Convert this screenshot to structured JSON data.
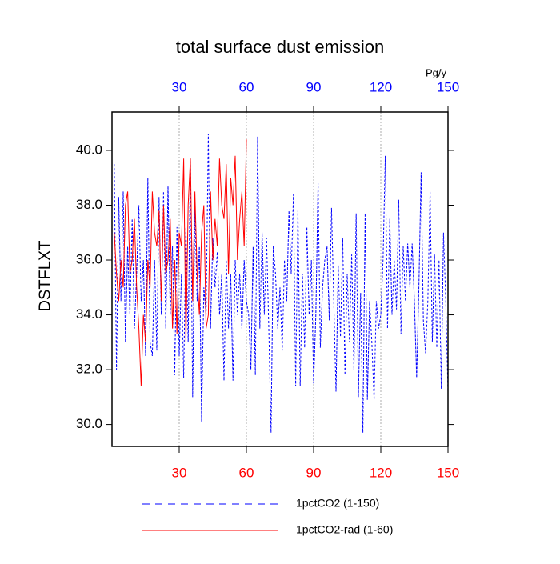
{
  "chart_data": {
    "type": "line",
    "title": "total surface dust emission",
    "ylabel": "DSTFLXT",
    "top_axis_label": "Pg/y",
    "xlim": [
      0,
      150
    ],
    "xticks": [
      30,
      60,
      90,
      120,
      150
    ],
    "bottom_tick_color": "red",
    "top_tick_color": "blue",
    "ylim": [
      29.2,
      41.4
    ],
    "yticks": [
      {
        "value": 30,
        "label": "30.0"
      },
      {
        "value": 32,
        "label": "32.0"
      },
      {
        "value": 34,
        "label": "34.0"
      },
      {
        "value": 36,
        "label": "36.0"
      },
      {
        "value": 38,
        "label": "38.0"
      },
      {
        "value": 40,
        "label": "40.0"
      }
    ],
    "grid": true,
    "x": [
      1,
      2,
      3,
      4,
      5,
      6,
      7,
      8,
      9,
      10,
      11,
      12,
      13,
      14,
      15,
      16,
      17,
      18,
      19,
      20,
      21,
      22,
      23,
      24,
      25,
      26,
      27,
      28,
      29,
      30,
      31,
      32,
      33,
      34,
      35,
      36,
      37,
      38,
      39,
      40,
      41,
      42,
      43,
      44,
      45,
      46,
      47,
      48,
      49,
      50,
      51,
      52,
      53,
      54,
      55,
      56,
      57,
      58,
      59,
      60,
      61,
      62,
      63,
      64,
      65,
      66,
      67,
      68,
      69,
      70,
      71,
      72,
      73,
      74,
      75,
      76,
      77,
      78,
      79,
      80,
      81,
      82,
      83,
      84,
      85,
      86,
      87,
      88,
      89,
      90,
      91,
      92,
      93,
      94,
      95,
      96,
      97,
      98,
      99,
      100,
      101,
      102,
      103,
      104,
      105,
      106,
      107,
      108,
      109,
      110,
      111,
      112,
      113,
      114,
      115,
      116,
      117,
      118,
      119,
      120,
      121,
      122,
      123,
      124,
      125,
      126,
      127,
      128,
      129,
      130,
      131,
      132,
      133,
      134,
      135,
      136,
      137,
      138,
      139,
      140,
      141,
      142,
      143,
      144,
      145,
      146,
      147,
      148,
      149,
      150
    ],
    "series": [
      {
        "name": "1pctCO2 (1-150)",
        "color": "blue",
        "dashed": true,
        "values": [
          39.5,
          32.0,
          38.3,
          34.5,
          38.5,
          33.0,
          36.5,
          34.0,
          37.5,
          33.5,
          35.5,
          38.0,
          34.5,
          36.0,
          32.5,
          39.0,
          33.0,
          32.5,
          36.0,
          32.7,
          38.3,
          34.0,
          38.5,
          33.5,
          38.7,
          34.0,
          36.5,
          31.8,
          37.2,
          32.5,
          35.5,
          31.7,
          37.2,
          33.0,
          39.7,
          31.0,
          38.0,
          34.5,
          36.5,
          30.1,
          35.0,
          34.0,
          40.6,
          33.5,
          36.8,
          35.0,
          36.3,
          34.0,
          35.5,
          31.6,
          36.0,
          33.5,
          35.5,
          31.6,
          36.0,
          34.0,
          35.5,
          33.5,
          36.0,
          34.5,
          34.0,
          32.0,
          36.5,
          31.8,
          40.5,
          33.5,
          37.0,
          34.0,
          36.8,
          33.5,
          29.7,
          36.5,
          35.5,
          33.5,
          35.0,
          32.7,
          36.0,
          34.5,
          37.8,
          35.5,
          38.4,
          31.4,
          37.8,
          31.4,
          35.5,
          32.8,
          37.2,
          34.0,
          36.0,
          31.5,
          34.0,
          38.8,
          32.8,
          35.0,
          36.0,
          36.5,
          33.8,
          37.9,
          34.5,
          31.2,
          35.8,
          33.2,
          36.8,
          31.8,
          35.5,
          33.0,
          36.2,
          32.0,
          37.7,
          31.0,
          34.8,
          29.7,
          37.7,
          30.9,
          34.5,
          33.0,
          30.9,
          34.5,
          33.5,
          34.0,
          36.0,
          39.8,
          33.5,
          37.5,
          34.0,
          36.0,
          34.2,
          38.2,
          33.3,
          36.5,
          34.5,
          36.6,
          35.0,
          36.6,
          34.5,
          31.7,
          35.0,
          39.2,
          33.8,
          32.6,
          34.5,
          38.5,
          33.0,
          36.2,
          32.8,
          36.0,
          31.3,
          37.0,
          34.5,
          31.2
        ]
      },
      {
        "name": "1pctCO2-rad (1-60)",
        "color": "red",
        "dashed": false,
        "values": [
          37.0,
          35.5,
          34.5,
          36.0,
          35.0,
          38.0,
          38.5,
          35.5,
          36.0,
          37.5,
          35.0,
          33.5,
          31.4,
          34.0,
          33.0,
          36.0,
          35.0,
          38.5,
          37.0,
          36.5,
          37.8,
          34.5,
          38.0,
          35.5,
          36.0,
          37.5,
          33.5,
          36.0,
          33.3,
          37.0,
          36.5,
          39.7,
          33.0,
          38.0,
          39.7,
          34.5,
          38.5,
          35.5,
          34.0,
          37.0,
          38.0,
          33.5,
          34.0,
          38.5,
          36.0,
          37.5,
          36.5,
          39.7,
          38.0,
          37.5,
          39.5,
          35.5,
          39.0,
          38.0,
          39.8,
          36.0,
          37.5,
          38.5,
          36.5,
          40.4,
          null,
          null,
          null,
          null,
          null,
          null,
          null,
          null,
          null,
          null,
          null,
          null,
          null,
          null,
          null,
          null,
          null,
          null,
          null,
          null,
          null,
          null,
          null,
          null,
          null,
          null,
          null,
          null,
          null,
          null,
          null,
          null,
          null,
          null,
          null,
          null,
          null,
          null,
          null,
          null,
          null,
          null,
          null,
          null,
          null,
          null,
          null,
          null,
          null,
          null,
          null,
          null,
          null,
          null,
          null,
          null,
          null,
          null,
          null,
          null,
          null,
          null,
          null,
          null,
          null,
          null,
          null,
          null,
          null,
          null,
          null,
          null,
          null,
          null,
          null,
          null,
          null,
          null,
          null,
          null,
          null,
          null,
          null,
          null,
          null,
          null,
          null,
          null,
          null,
          null
        ]
      }
    ]
  }
}
